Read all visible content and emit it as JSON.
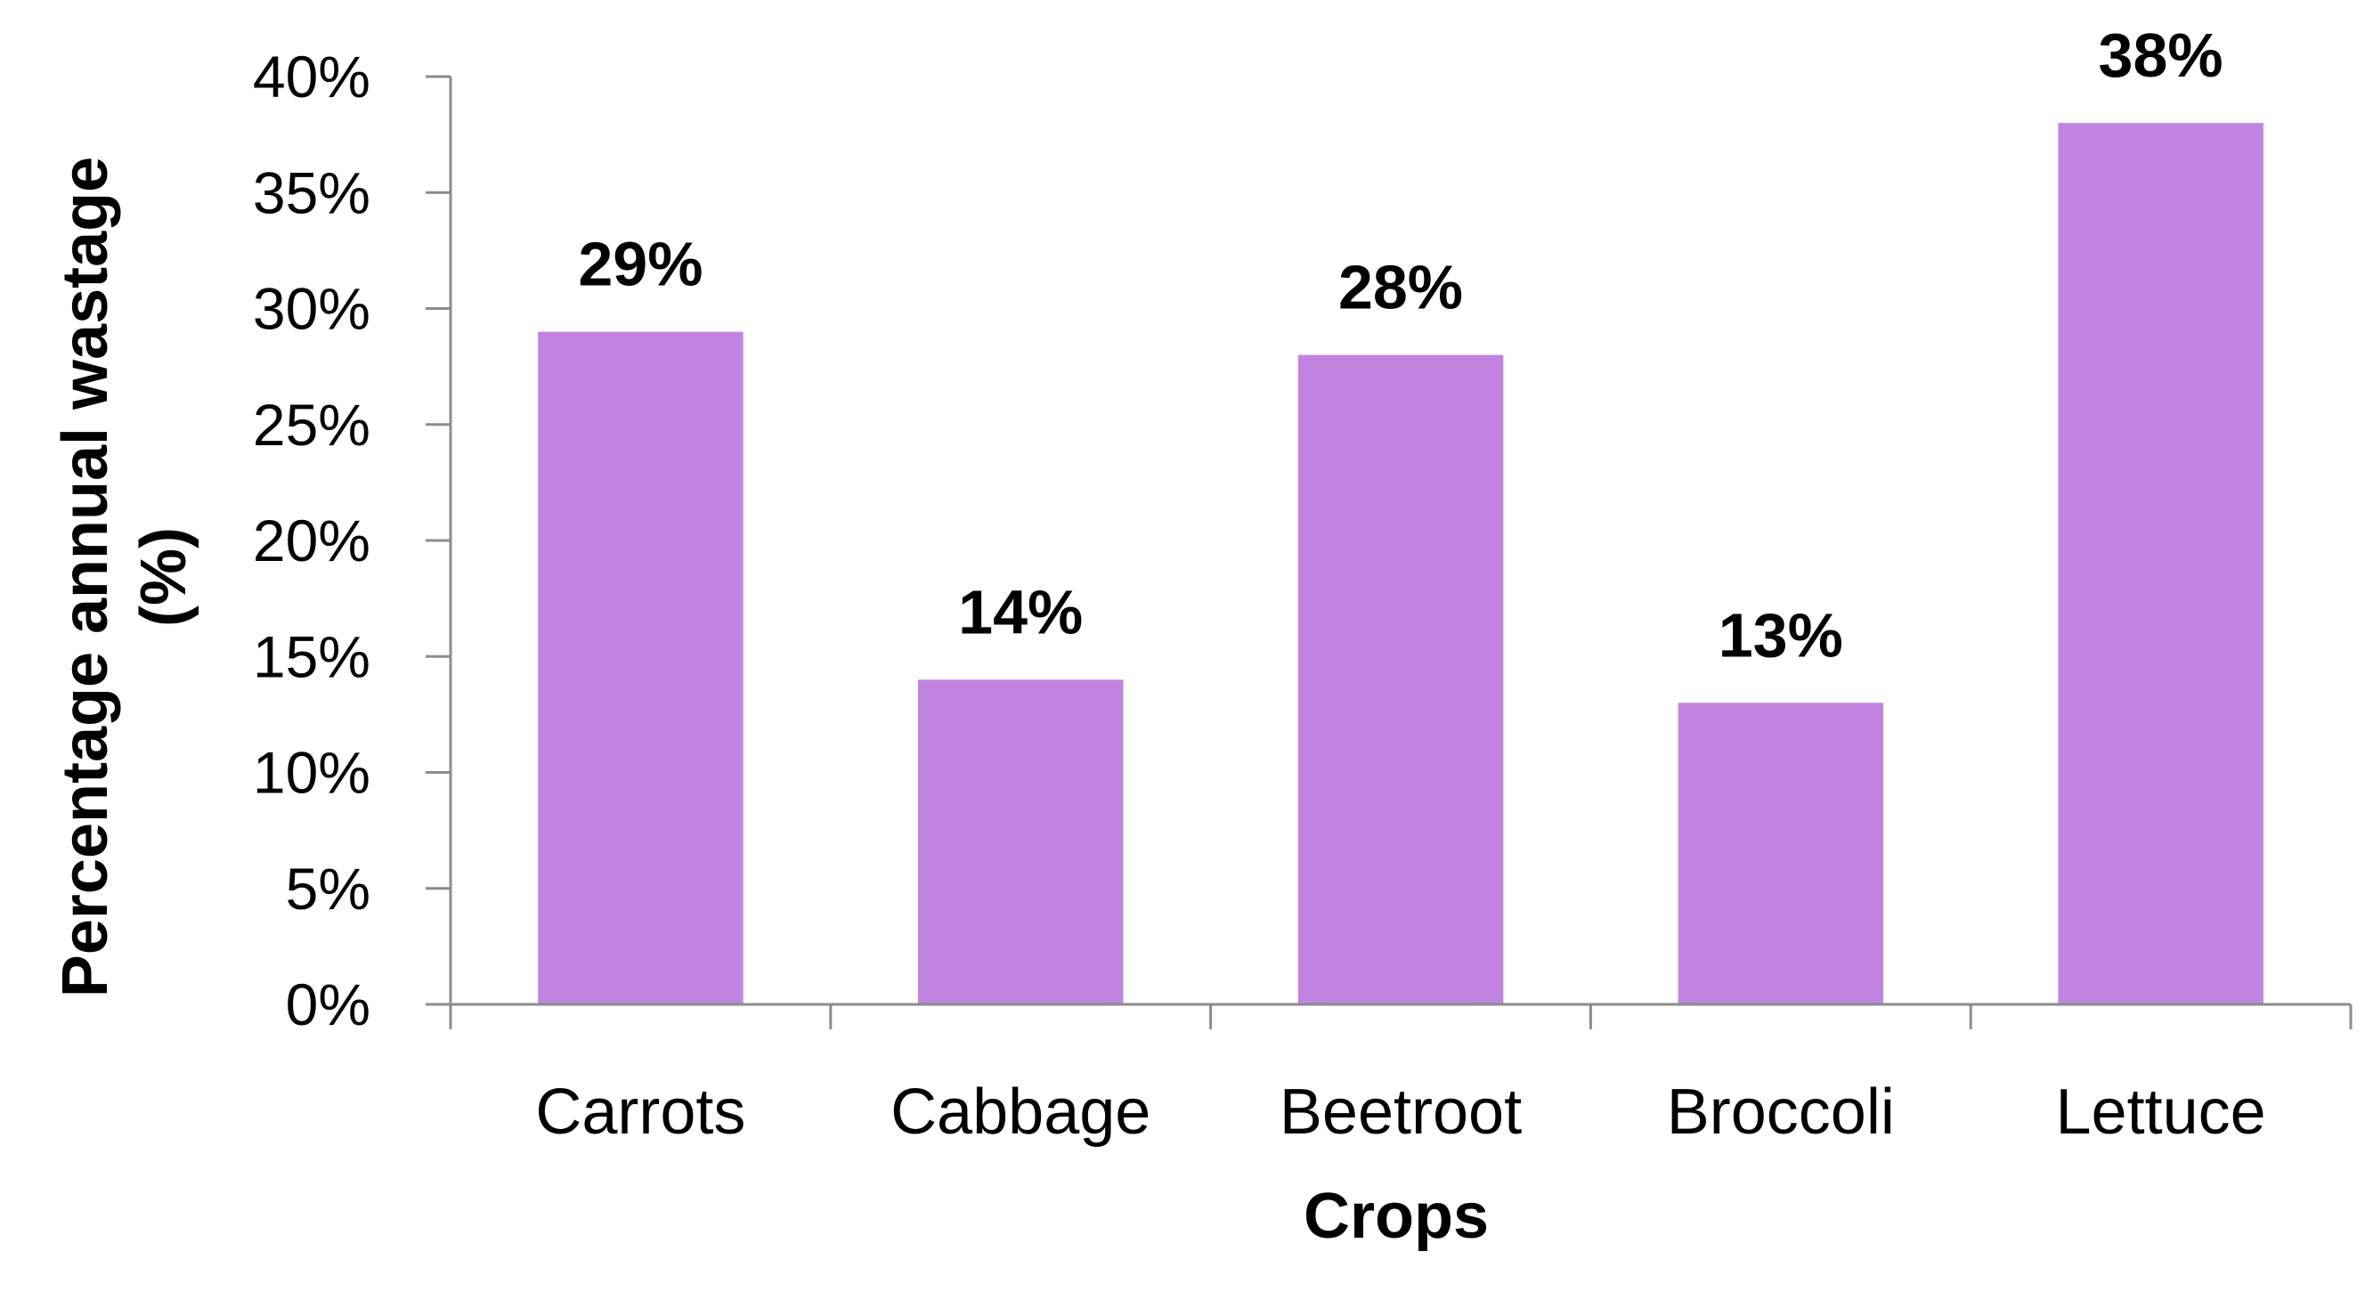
{
  "chart_data": {
    "type": "bar",
    "title": "",
    "xlabel": "Crops",
    "ylabel_lines": [
      "Percentage annual wastage",
      "(%)"
    ],
    "categories": [
      "Carrots",
      "Cabbage",
      "Beetroot",
      "Broccoli",
      "Lettuce"
    ],
    "values": [
      29,
      14,
      28,
      13,
      38
    ],
    "data_labels": [
      "29%",
      "14%",
      "28%",
      "13%",
      "38%"
    ],
    "ylim": [
      0,
      40
    ],
    "y_ticks": [
      0,
      5,
      10,
      15,
      20,
      25,
      30,
      35,
      40
    ],
    "y_tick_labels": [
      "0%",
      "5%",
      "10%",
      "15%",
      "20%",
      "25%",
      "30%",
      "35%",
      "40%"
    ],
    "grid": false,
    "legend": "none",
    "colors": {
      "bar": "#C084E0",
      "axis": "#8C8C8C",
      "text": "#000000"
    }
  }
}
